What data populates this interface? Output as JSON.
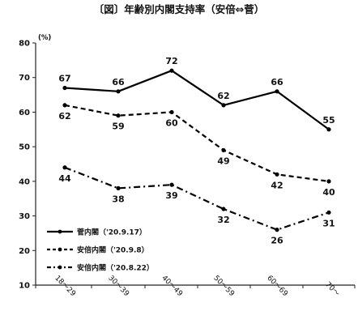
{
  "chart_data": {
    "type": "line",
    "title": "〔図〕年齢別内閣支持率（安倍⇔菅）",
    "y_unit": "(%)",
    "ylim": [
      10,
      80
    ],
    "y_ticks": [
      10,
      20,
      30,
      40,
      50,
      60,
      70,
      80
    ],
    "categories": [
      "18～29",
      "30～39",
      "40～49",
      "50～59",
      "60～69",
      "70～"
    ],
    "legend_position": "bottom-left",
    "grid": false,
    "series": [
      {
        "name": "菅内閣（'20.9.17）",
        "values": [
          67,
          66,
          72,
          62,
          66,
          55
        ],
        "line_style": "solid",
        "label_position": "above"
      },
      {
        "name": "安倍内閣（'20.9.8）",
        "values": [
          62,
          59,
          60,
          49,
          42,
          40
        ],
        "line_style": "dashed",
        "label_position": "below"
      },
      {
        "name": "安倍内閣（'20.8.22）",
        "values": [
          44,
          38,
          39,
          32,
          26,
          31
        ],
        "line_style": "dashdot",
        "label_position": "below"
      }
    ]
  }
}
